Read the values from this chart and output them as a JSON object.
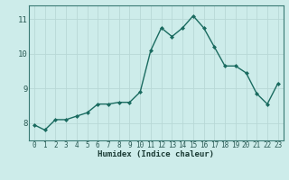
{
  "x": [
    0,
    1,
    2,
    3,
    4,
    5,
    6,
    7,
    8,
    9,
    10,
    11,
    12,
    13,
    14,
    15,
    16,
    17,
    18,
    19,
    20,
    21,
    22,
    23
  ],
  "y": [
    7.95,
    7.8,
    8.1,
    8.1,
    8.2,
    8.3,
    8.55,
    8.55,
    8.6,
    8.6,
    8.9,
    10.1,
    10.75,
    10.5,
    10.75,
    11.1,
    10.75,
    10.2,
    9.65,
    9.65,
    9.45,
    8.85,
    8.55,
    9.15
  ],
  "xlabel": "Humidex (Indice chaleur)",
  "bg_color": "#cdecea",
  "grid_color": "#b8d8d6",
  "line_color": "#1a6b60",
  "marker_color": "#1a6b60",
  "ylim": [
    7.5,
    11.4
  ],
  "yticks": [
    8,
    9,
    10,
    11
  ],
  "xlim": [
    -0.5,
    23.5
  ],
  "xticks": [
    0,
    1,
    2,
    3,
    4,
    5,
    6,
    7,
    8,
    9,
    10,
    11,
    12,
    13,
    14,
    15,
    16,
    17,
    18,
    19,
    20,
    21,
    22,
    23
  ],
  "tick_color": "#2a5a54",
  "xlabel_color": "#1a3a34"
}
